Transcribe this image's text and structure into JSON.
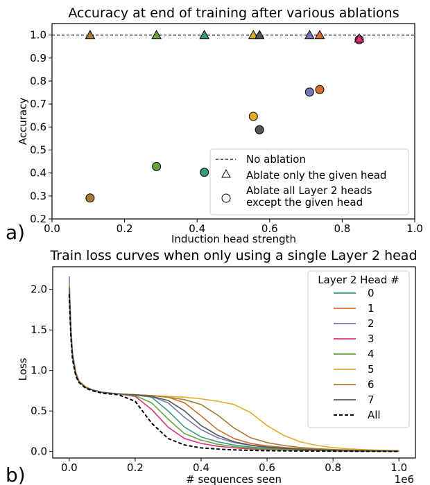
{
  "panel_labels": [
    "a)",
    "b)"
  ],
  "chart_data": [
    {
      "type": "scatter",
      "title": "Accuracy at end of training after various ablations",
      "xlabel": "Induction head strength",
      "ylabel": "Accuracy",
      "xlim": [
        0.0,
        1.0
      ],
      "ylim": [
        0.2,
        1.05
      ],
      "xticks": [
        "0.0",
        "0.2",
        "0.4",
        "0.6",
        "0.8",
        "1.0"
      ],
      "yticks": [
        "0.2",
        "0.3",
        "0.4",
        "0.5",
        "0.6",
        "0.7",
        "0.8",
        "0.9",
        "1.0"
      ],
      "grid": false,
      "legend_position": "lower-right",
      "reference_line": {
        "label": "No ablation",
        "y": 1.0
      },
      "legend": [
        {
          "marker": "dashed-line",
          "label": "No ablation"
        },
        {
          "marker": "triangle",
          "label": "Ablate only the given head"
        },
        {
          "marker": "circle",
          "label": "Ablate all Layer 2 heads\nexcept the given head"
        }
      ],
      "heads": [
        {
          "head": "0",
          "color": "#3a9a7f",
          "x": 0.42,
          "ablate_only": 1.0,
          "keep_only": 0.403
        },
        {
          "head": "1",
          "color": "#d56c2b",
          "x": 0.738,
          "ablate_only": 1.0,
          "keep_only": 0.763
        },
        {
          "head": "2",
          "color": "#7678b4",
          "x": 0.71,
          "ablate_only": 1.0,
          "keep_only": 0.752
        },
        {
          "head": "3",
          "color": "#d8337b",
          "x": 0.847,
          "ablate_only": 0.985,
          "keep_only": 0.98
        },
        {
          "head": "4",
          "color": "#6aa23a",
          "x": 0.288,
          "ablate_only": 1.0,
          "keep_only": 0.428
        },
        {
          "head": "5",
          "color": "#e1ab2c",
          "x": 0.555,
          "ablate_only": 1.0,
          "keep_only": 0.646
        },
        {
          "head": "6",
          "color": "#a77b34",
          "x": 0.105,
          "ablate_only": 1.0,
          "keep_only": 0.291
        },
        {
          "head": "7",
          "color": "#555555",
          "x": 0.572,
          "ablate_only": 1.0,
          "keep_only": 0.588
        }
      ]
    },
    {
      "type": "line",
      "title": "Train loss curves when only using a single Layer 2 head",
      "xlabel": "# sequences seen",
      "ylabel": "Loss",
      "x_scale_label": "1e6",
      "xlim": [
        -0.05,
        1.05
      ],
      "ylim": [
        -0.08,
        2.28
      ],
      "xticks": [
        "0.0",
        "0.2",
        "0.4",
        "0.6",
        "0.8",
        "1.0"
      ],
      "yticks": [
        "0.0",
        "0.5",
        "1.0",
        "1.5",
        "2.0"
      ],
      "grid": false,
      "legend_title": "Layer 2 Head #",
      "legend_position": "upper-right",
      "x": [
        0.0,
        0.005,
        0.01,
        0.02,
        0.03,
        0.05,
        0.07,
        0.1,
        0.15,
        0.2,
        0.25,
        0.3,
        0.35,
        0.4,
        0.45,
        0.5,
        0.55,
        0.6,
        0.65,
        0.7,
        0.75,
        0.8,
        0.85,
        0.9,
        0.95,
        1.0
      ],
      "series": [
        {
          "name": "0",
          "color": "#3a9a7f",
          "dash": "solid",
          "values": [
            2.0,
            1.48,
            1.18,
            0.96,
            0.86,
            0.79,
            0.76,
            0.73,
            0.71,
            0.7,
            0.67,
            0.5,
            0.3,
            0.18,
            0.12,
            0.08,
            0.055,
            0.04,
            0.03,
            0.022,
            0.016,
            0.012,
            0.009,
            0.007,
            0.005,
            0.004
          ]
        },
        {
          "name": "1",
          "color": "#d56c2b",
          "dash": "solid",
          "values": [
            2.04,
            1.5,
            1.2,
            0.97,
            0.87,
            0.8,
            0.76,
            0.73,
            0.71,
            0.7,
            0.69,
            0.67,
            0.6,
            0.44,
            0.27,
            0.16,
            0.1,
            0.07,
            0.05,
            0.035,
            0.025,
            0.018,
            0.013,
            0.01,
            0.007,
            0.005
          ]
        },
        {
          "name": "2",
          "color": "#7678b4",
          "dash": "solid",
          "values": [
            2.16,
            1.55,
            1.23,
            0.98,
            0.87,
            0.8,
            0.76,
            0.73,
            0.71,
            0.7,
            0.68,
            0.6,
            0.42,
            0.27,
            0.17,
            0.11,
            0.075,
            0.05,
            0.036,
            0.026,
            0.019,
            0.014,
            0.01,
            0.008,
            0.006,
            0.004
          ]
        },
        {
          "name": "3",
          "color": "#d8337b",
          "dash": "solid",
          "values": [
            2.0,
            1.46,
            1.17,
            0.95,
            0.86,
            0.79,
            0.76,
            0.73,
            0.71,
            0.68,
            0.52,
            0.3,
            0.16,
            0.1,
            0.065,
            0.045,
            0.032,
            0.023,
            0.017,
            0.013,
            0.01,
            0.008,
            0.006,
            0.005,
            0.004,
            0.003
          ]
        },
        {
          "name": "4",
          "color": "#6aa23a",
          "dash": "solid",
          "values": [
            1.98,
            1.46,
            1.17,
            0.95,
            0.86,
            0.79,
            0.76,
            0.73,
            0.71,
            0.69,
            0.6,
            0.4,
            0.22,
            0.14,
            0.09,
            0.06,
            0.042,
            0.03,
            0.022,
            0.016,
            0.012,
            0.009,
            0.007,
            0.005,
            0.004,
            0.003
          ]
        },
        {
          "name": "5",
          "color": "#e1ab2c",
          "dash": "solid",
          "values": [
            2.06,
            1.5,
            1.2,
            0.97,
            0.87,
            0.8,
            0.76,
            0.73,
            0.71,
            0.7,
            0.69,
            0.68,
            0.67,
            0.65,
            0.62,
            0.58,
            0.48,
            0.32,
            0.2,
            0.12,
            0.075,
            0.048,
            0.032,
            0.022,
            0.015,
            0.01
          ]
        },
        {
          "name": "6",
          "color": "#a77b34",
          "dash": "solid",
          "values": [
            2.04,
            1.49,
            1.19,
            0.96,
            0.86,
            0.79,
            0.76,
            0.73,
            0.71,
            0.7,
            0.69,
            0.67,
            0.64,
            0.58,
            0.45,
            0.29,
            0.17,
            0.11,
            0.075,
            0.05,
            0.035,
            0.025,
            0.018,
            0.013,
            0.009,
            0.006
          ]
        },
        {
          "name": "7",
          "color": "#555555",
          "dash": "solid",
          "values": [
            2.02,
            1.48,
            1.18,
            0.96,
            0.86,
            0.79,
            0.76,
            0.73,
            0.71,
            0.7,
            0.68,
            0.63,
            0.5,
            0.32,
            0.2,
            0.12,
            0.08,
            0.055,
            0.04,
            0.028,
            0.02,
            0.015,
            0.011,
            0.008,
            0.006,
            0.004
          ]
        },
        {
          "name": "All",
          "color": "#000000",
          "dash": "dashed",
          "values": [
            1.94,
            1.42,
            1.14,
            0.93,
            0.85,
            0.78,
            0.75,
            0.72,
            0.7,
            0.62,
            0.35,
            0.16,
            0.08,
            0.045,
            0.03,
            0.02,
            0.014,
            0.01,
            0.008,
            0.006,
            0.005,
            0.004,
            0.003,
            0.002,
            0.002,
            0.001
          ]
        }
      ]
    }
  ]
}
